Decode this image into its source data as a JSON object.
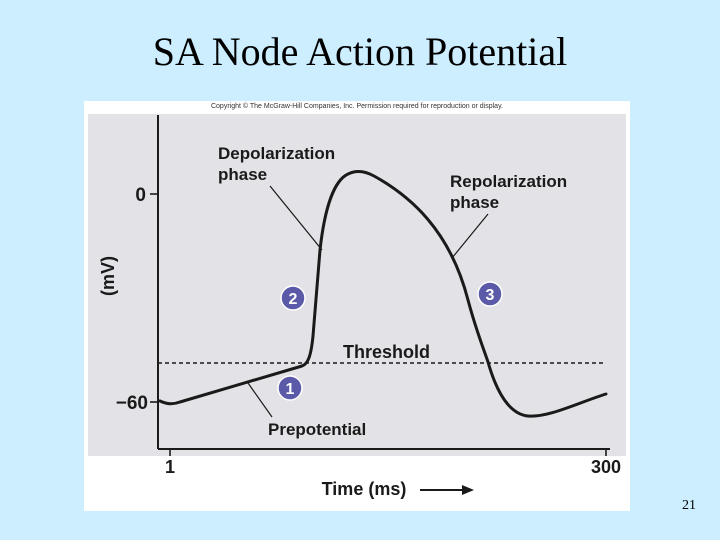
{
  "slide": {
    "title": "SA Node Action Potential",
    "number": "21"
  },
  "figure": {
    "copyright": "Copyright © The McGraw-Hill Companies, Inc. Permission required for reproduction or display."
  },
  "diagram": {
    "y_axis_label": "(mV)",
    "y_ticks": [
      "0",
      "−60"
    ],
    "x_ticks": [
      "1",
      "300"
    ],
    "x_axis_label": "Time (ms)",
    "threshold_label": "Threshold",
    "phases": [
      {
        "label_line1": "Depolarization",
        "label_line2": "phase",
        "number": "2"
      },
      {
        "label_line1": "Repolarization",
        "label_line2": "phase",
        "number": "3"
      },
      {
        "label_line1": "Prepotential",
        "label_line2": "",
        "number": "1"
      }
    ],
    "colors": {
      "background": "#cceeff",
      "plot_background": "#e3e2e6",
      "badge_fill": "#5a5aa8",
      "curve": "#1a1a1a"
    }
  }
}
